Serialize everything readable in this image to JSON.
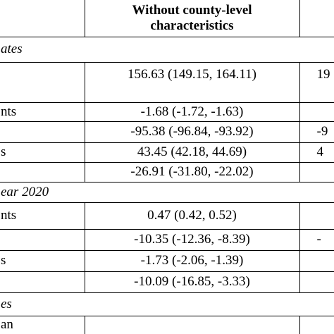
{
  "table": {
    "header": {
      "middle": "Without county-level characteristics"
    },
    "rows": [
      {
        "section": "ates"
      },
      {
        "value": "156.63 (149.15, 164.11)",
        "right": "19"
      },
      {
        "label": "nts",
        "value": "-1.68 (-1.72, -1.63)"
      },
      {
        "value": "-95.38 (-96.84, -93.92)",
        "right": "-9"
      },
      {
        "label": "s",
        "value": "43.45 (42.18, 44.69)",
        "right": "4"
      },
      {
        "value": "-26.91 (-31.80, -22.02)"
      },
      {
        "section": "ear 2020"
      },
      {
        "label": "nts",
        "value": "0.47 (0.42, 0.52)"
      },
      {
        "value": "-10.35 (-12.36, -8.39)",
        "right": "-"
      },
      {
        "label": "s",
        "value": "-1.73 (-2.06, -1.39)"
      },
      {
        "value": "-10.09 (-16.85, -3.33)"
      },
      {
        "section": "es"
      },
      {
        "label": "an"
      }
    ]
  }
}
